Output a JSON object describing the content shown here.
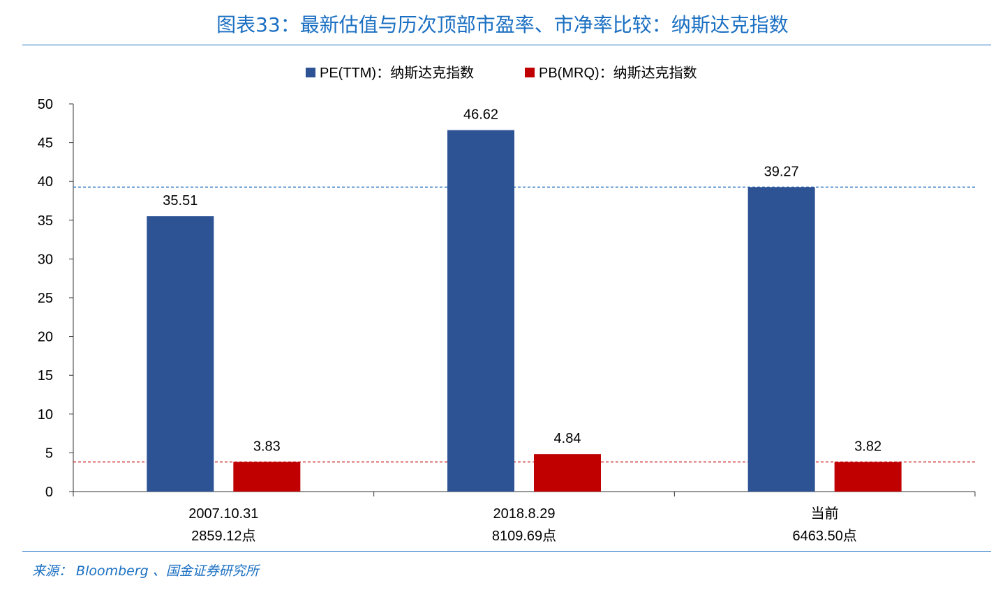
{
  "title": "图表33：最新估值与历次顶部市盈率、市净率比较：纳斯达克指数",
  "source": "来源： Bloomberg 、国金证券研究所",
  "chart_data": {
    "type": "bar",
    "categories": [
      {
        "date": "2007.10.31",
        "index_level": "2859.12点"
      },
      {
        "date": "2018.8.29",
        "index_level": "8109.69点"
      },
      {
        "date": "当前",
        "index_level": "6463.50点"
      }
    ],
    "series": [
      {
        "name": "PE(TTM)：纳斯达克指数",
        "color": "#2e5395",
        "values": [
          35.51,
          46.62,
          39.27
        ],
        "labels": [
          "35.51",
          "46.62",
          "39.27"
        ]
      },
      {
        "name": "PB(MRQ)：纳斯达克指数",
        "color": "#c00000",
        "values": [
          3.83,
          4.84,
          3.82
        ],
        "labels": [
          "3.83",
          "4.84",
          "3.82"
        ]
      }
    ],
    "reference_lines": [
      {
        "value": 39.27,
        "color": "#2e75c2",
        "style": "dashed"
      },
      {
        "value": 3.82,
        "color": "#c00000",
        "style": "dashed"
      }
    ],
    "yticks": [
      "0",
      "5",
      "10",
      "15",
      "20",
      "25",
      "30",
      "35",
      "40",
      "45",
      "50"
    ],
    "ylim": [
      0,
      50
    ],
    "grid": false,
    "legend_position": "top-center"
  }
}
